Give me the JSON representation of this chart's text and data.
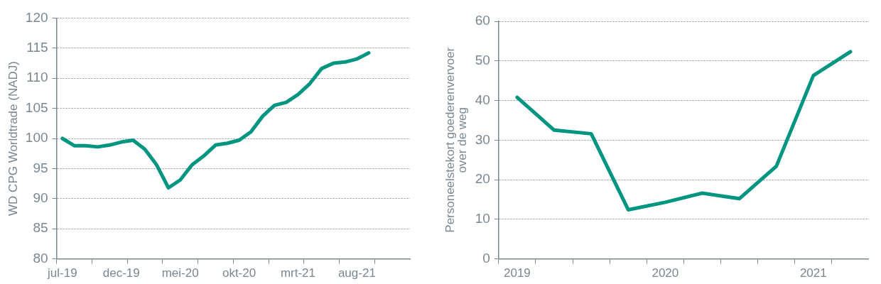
{
  "chart_data": [
    {
      "type": "line",
      "ylabel": "WD CPG Worldtrade (NADJ)",
      "categories": [
        "jul-19",
        null,
        null,
        null,
        null,
        "dec-19",
        null,
        null,
        null,
        null,
        "mei-20",
        null,
        null,
        null,
        null,
        "okt-20",
        null,
        null,
        null,
        null,
        "mrt-21",
        null,
        null,
        null,
        null,
        "aug-21",
        null,
        null,
        null,
        null
      ],
      "series": [
        {
          "color": "#009580",
          "values": [
            100.0,
            98.8,
            98.8,
            98.6,
            98.9,
            99.4,
            99.7,
            98.2,
            95.6,
            91.8,
            93.1,
            95.6,
            97.1,
            98.9,
            99.2,
            99.7,
            101.1,
            103.7,
            105.5,
            106.0,
            107.3,
            109.1,
            111.6,
            112.5,
            112.7,
            113.2,
            114.2,
            null,
            null,
            null
          ]
        }
      ],
      "ylim": [
        80,
        120
      ],
      "yticks": [
        80,
        85,
        90,
        95,
        100,
        105,
        110,
        115,
        120
      ],
      "grid": "y",
      "marker": "none"
    },
    {
      "type": "line",
      "ylabel": "Personeelstekort goederenvervoer over de weg",
      "categories": [
        "2019",
        null,
        null,
        null,
        "2020",
        null,
        null,
        null,
        "2021",
        null
      ],
      "series": [
        {
          "color": "#009580",
          "values": [
            40.8,
            32.5,
            31.6,
            12.4,
            14.3,
            16.6,
            15.2,
            23.4,
            46.3,
            52.3
          ]
        }
      ],
      "ylim": [
        0,
        60
      ],
      "yticks": [
        0,
        10,
        20,
        30,
        40,
        50,
        60
      ],
      "grid": "y",
      "marker": "none"
    }
  ]
}
